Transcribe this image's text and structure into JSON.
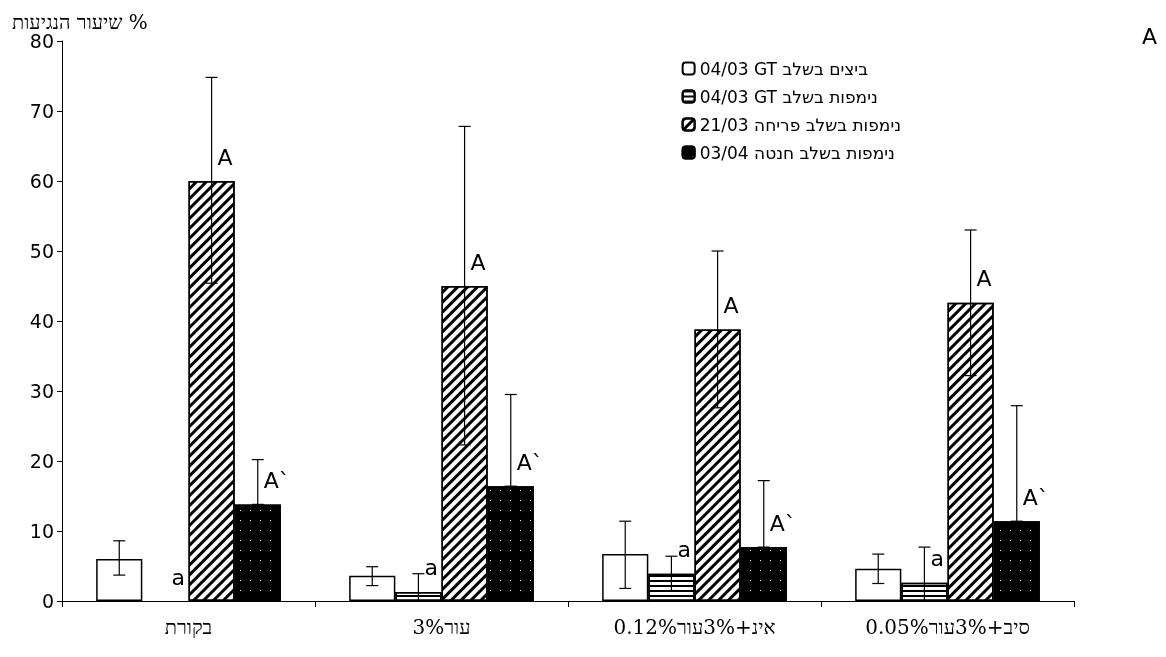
{
  "chart_data": {
    "type": "bar",
    "ylabel": "שיעור הנגיעות %",
    "categories": [
      "בקורת",
      "3%עור",
      "0.12%אינ+3%עור",
      "0.05%סיב+3%עור"
    ],
    "series": [
      {
        "name": "04/03 GT ביצים בשלב",
        "color": "#ffffff",
        "values": [
          6,
          3.6,
          6.7,
          4.6
        ],
        "errors": [
          [
            3.7,
            8.6
          ],
          [
            2.2,
            4.9
          ],
          [
            1.8,
            11.4
          ],
          [
            2.5,
            6.7
          ]
        ]
      },
      {
        "name": "04/03 GT נימפות בשלב",
        "color": "#ffffff",
        "values": [
          0,
          1.3,
          3.9,
          2.6
        ],
        "errors": [
          null,
          [
            0,
            3.9
          ],
          [
            1.5,
            6.4
          ],
          [
            0,
            7.7
          ]
        ],
        "value_labels": [
          "a",
          "a",
          "a",
          "a"
        ]
      },
      {
        "name": "21/03 נימפות בשלב פריחה",
        "color": "#ffffff",
        "values": [
          60,
          45,
          38.8,
          42.6
        ],
        "errors": [
          [
            45.4,
            74.8
          ],
          [
            22.3,
            67.8
          ],
          [
            27.6,
            50
          ],
          [
            32.2,
            53
          ]
        ],
        "value_labels": [
          "A",
          "A",
          "A",
          "A"
        ]
      },
      {
        "name": "03/04 נימפות בשלב חנטה",
        "color": "#000000",
        "values": [
          13.8,
          16.4,
          7.7,
          11.4
        ],
        "errors": [
          [
            13.8,
            20.2
          ],
          [
            16.4,
            29.5
          ],
          [
            7.7,
            17.2
          ],
          [
            11.4,
            27.9
          ]
        ],
        "value_labels": [
          "A`",
          "A`",
          "A`",
          "A`"
        ]
      }
    ],
    "ylim": [
      0,
      80
    ],
    "yticks": [
      0,
      10,
      20,
      30,
      40,
      50,
      60,
      70,
      80
    ],
    "grid": false,
    "legend": "top right",
    "annotations": [
      "A"
    ]
  }
}
